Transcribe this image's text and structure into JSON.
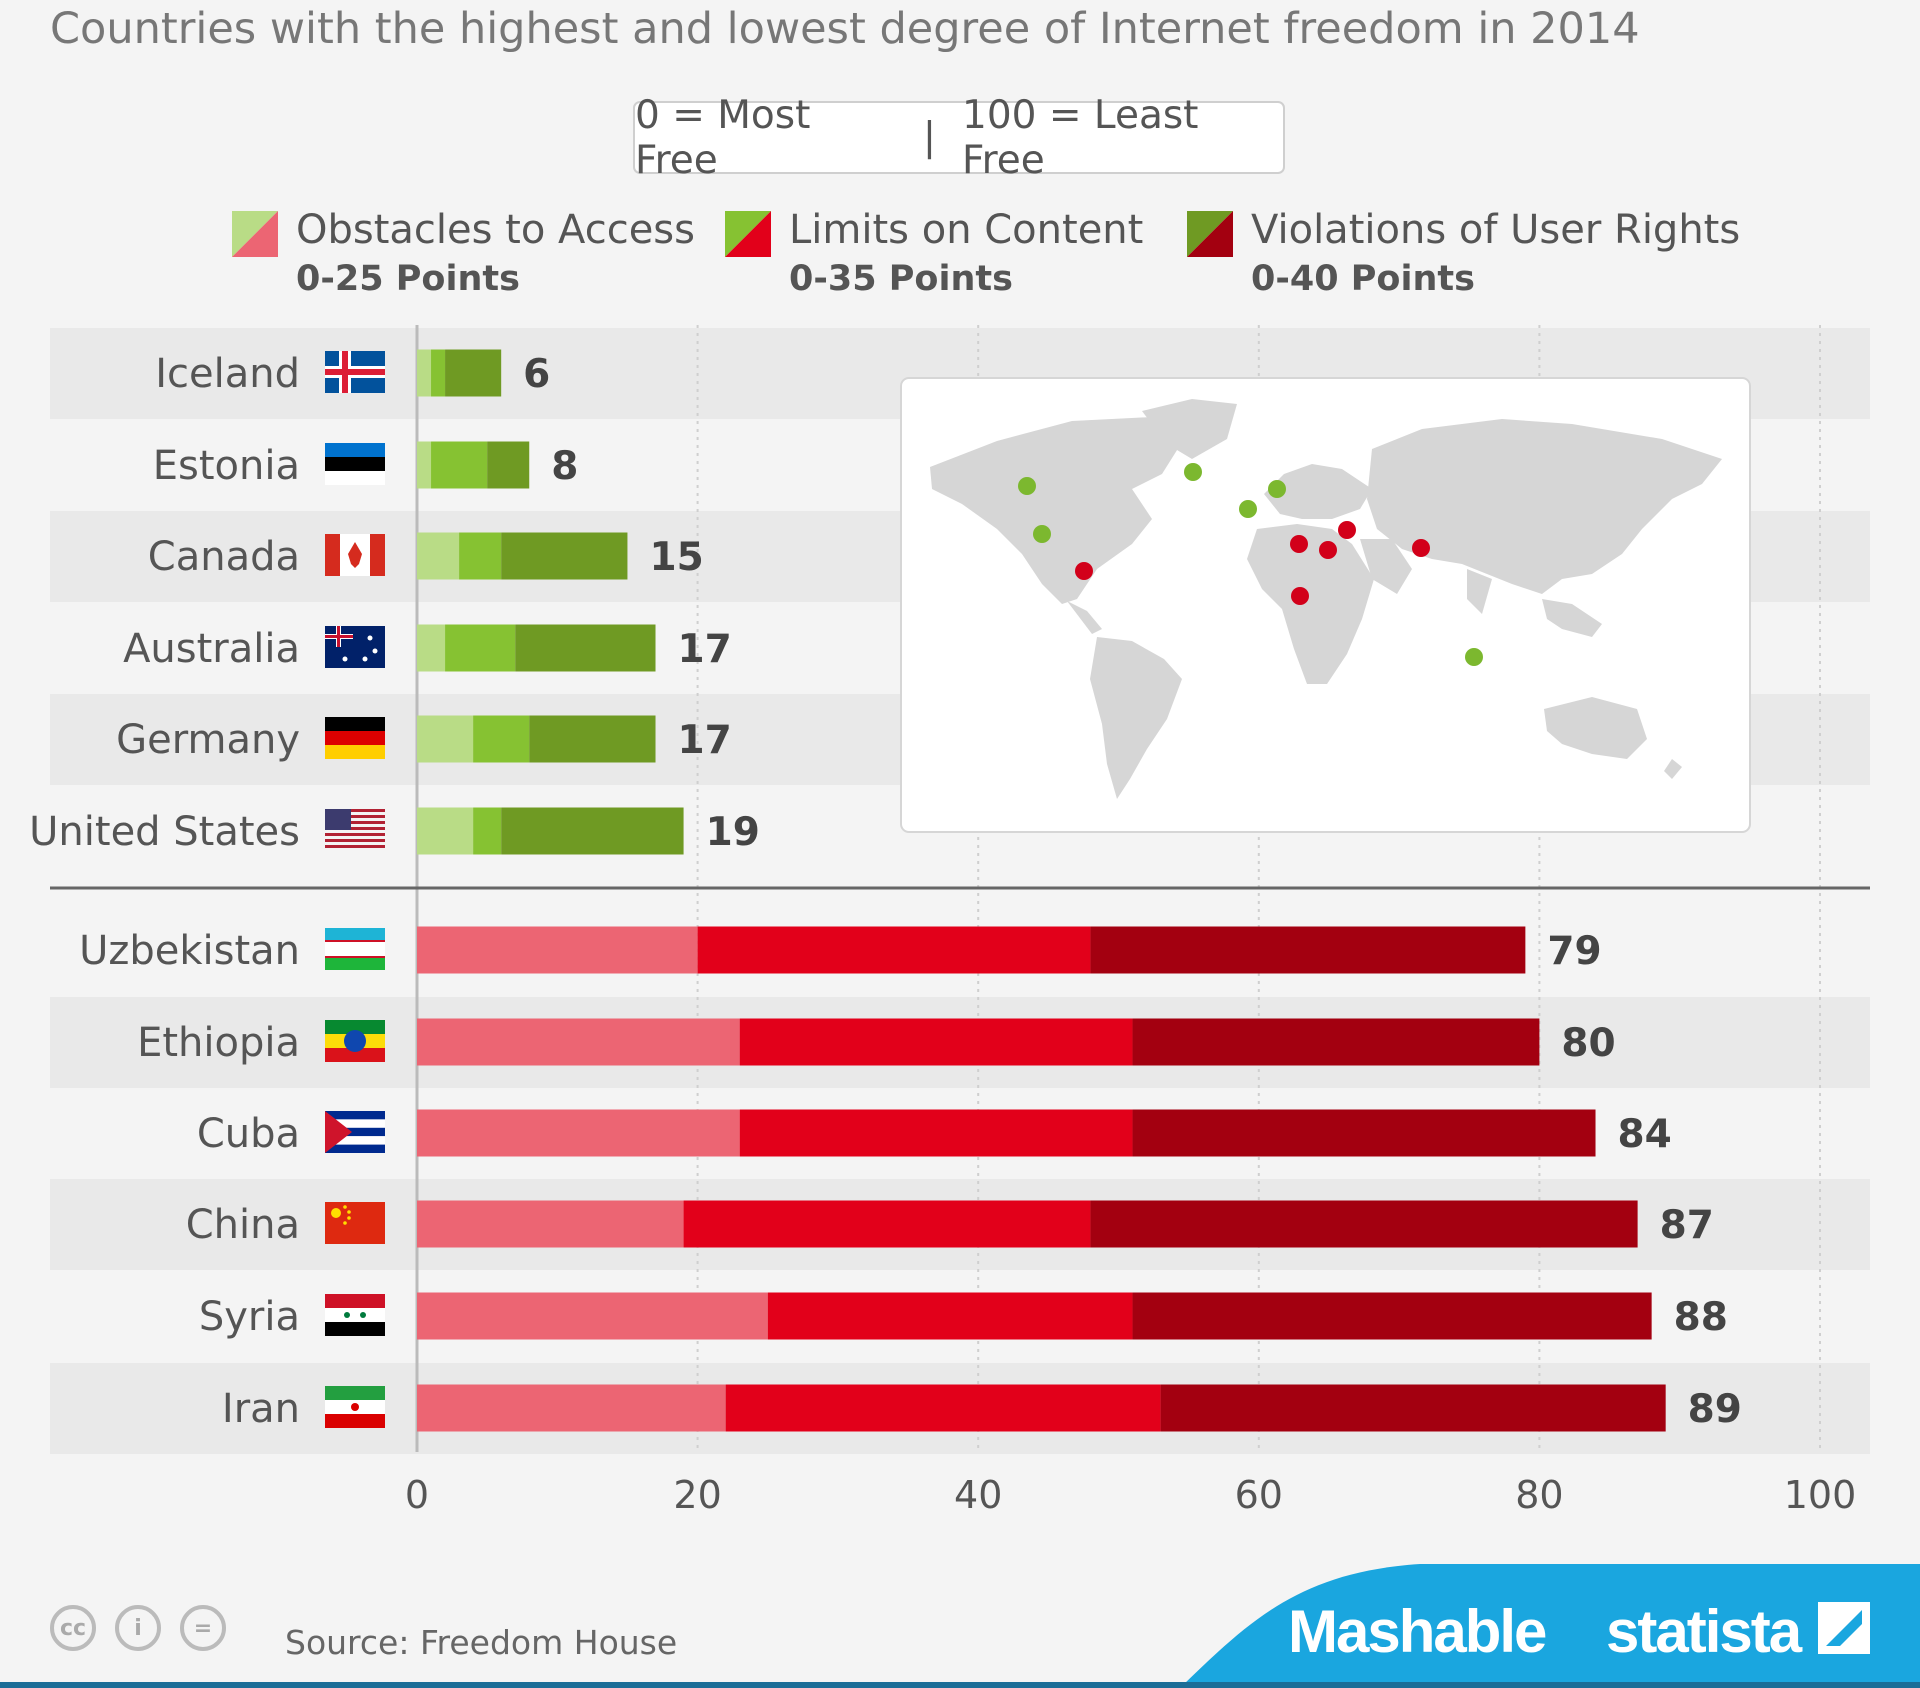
{
  "subtitle": "Countries with the highest and lowest degree of Internet freedom in 2014",
  "scale": {
    "left": "0 = Most Free",
    "separator": "|",
    "right": "100 = Least Free"
  },
  "legend": [
    {
      "label": "Obstacles to Access",
      "range": "0-25 Points"
    },
    {
      "label": "Limits on Content",
      "range": "0-35 Points"
    },
    {
      "label": "Violations of User Rights",
      "range": "0-40 Points"
    }
  ],
  "colors": {
    "free": [
      "#b9dc86",
      "#86c232",
      "#6f9a23"
    ],
    "notfree": [
      "#ec6573",
      "#e2001a",
      "#a30010"
    ],
    "map_free": "#7cb82f",
    "map_notfree": "#d2001a",
    "footer_blue": "#1aa6df"
  },
  "chart_data": {
    "type": "bar",
    "stacked": true,
    "orientation": "horizontal",
    "categories": [
      "Iceland",
      "Estonia",
      "Canada",
      "Australia",
      "Germany",
      "United States",
      "Uzbekistan",
      "Ethiopia",
      "Cuba",
      "China",
      "Syria",
      "Iran"
    ],
    "groups": [
      "Most free",
      "Most free",
      "Most free",
      "Most free",
      "Most free",
      "Most free",
      "Least free",
      "Least free",
      "Least free",
      "Least free",
      "Least free",
      "Least free"
    ],
    "series": [
      {
        "name": "Obstacles to Access",
        "values": [
          1,
          1,
          3,
          2,
          4,
          4,
          20,
          23,
          23,
          19,
          25,
          22
        ]
      },
      {
        "name": "Limits on Content",
        "values": [
          1,
          4,
          3,
          5,
          4,
          2,
          28,
          28,
          28,
          29,
          26,
          31
        ]
      },
      {
        "name": "Violations of User Rights",
        "values": [
          4,
          3,
          9,
          10,
          9,
          13,
          31,
          29,
          33,
          39,
          37,
          36
        ]
      }
    ],
    "totals": [
      "6",
      "8",
      "15",
      "17",
      "17",
      "19",
      "79",
      "80",
      "84",
      "87",
      "88",
      "89"
    ],
    "xlim": [
      0,
      100
    ],
    "xticks": [
      "0",
      "20",
      "40",
      "60",
      "80",
      "100"
    ],
    "xlabel": "",
    "ylabel": ""
  },
  "flags": [
    "iceland-flag",
    "estonia-flag",
    "canada-flag",
    "australia-flag",
    "germany-flag",
    "usa-flag",
    "uzbekistan-flag",
    "ethiopia-flag",
    "cuba-flag",
    "china-flag",
    "syria-flag",
    "iran-flag"
  ],
  "map": {
    "label": "world-map"
  },
  "footer": {
    "source": "Source: Freedom House",
    "brand1": "Mashable",
    "brand2": "statista",
    "cc_icons": [
      "creative-commons-icon",
      "attribution-icon",
      "no-derivatives-icon"
    ]
  }
}
